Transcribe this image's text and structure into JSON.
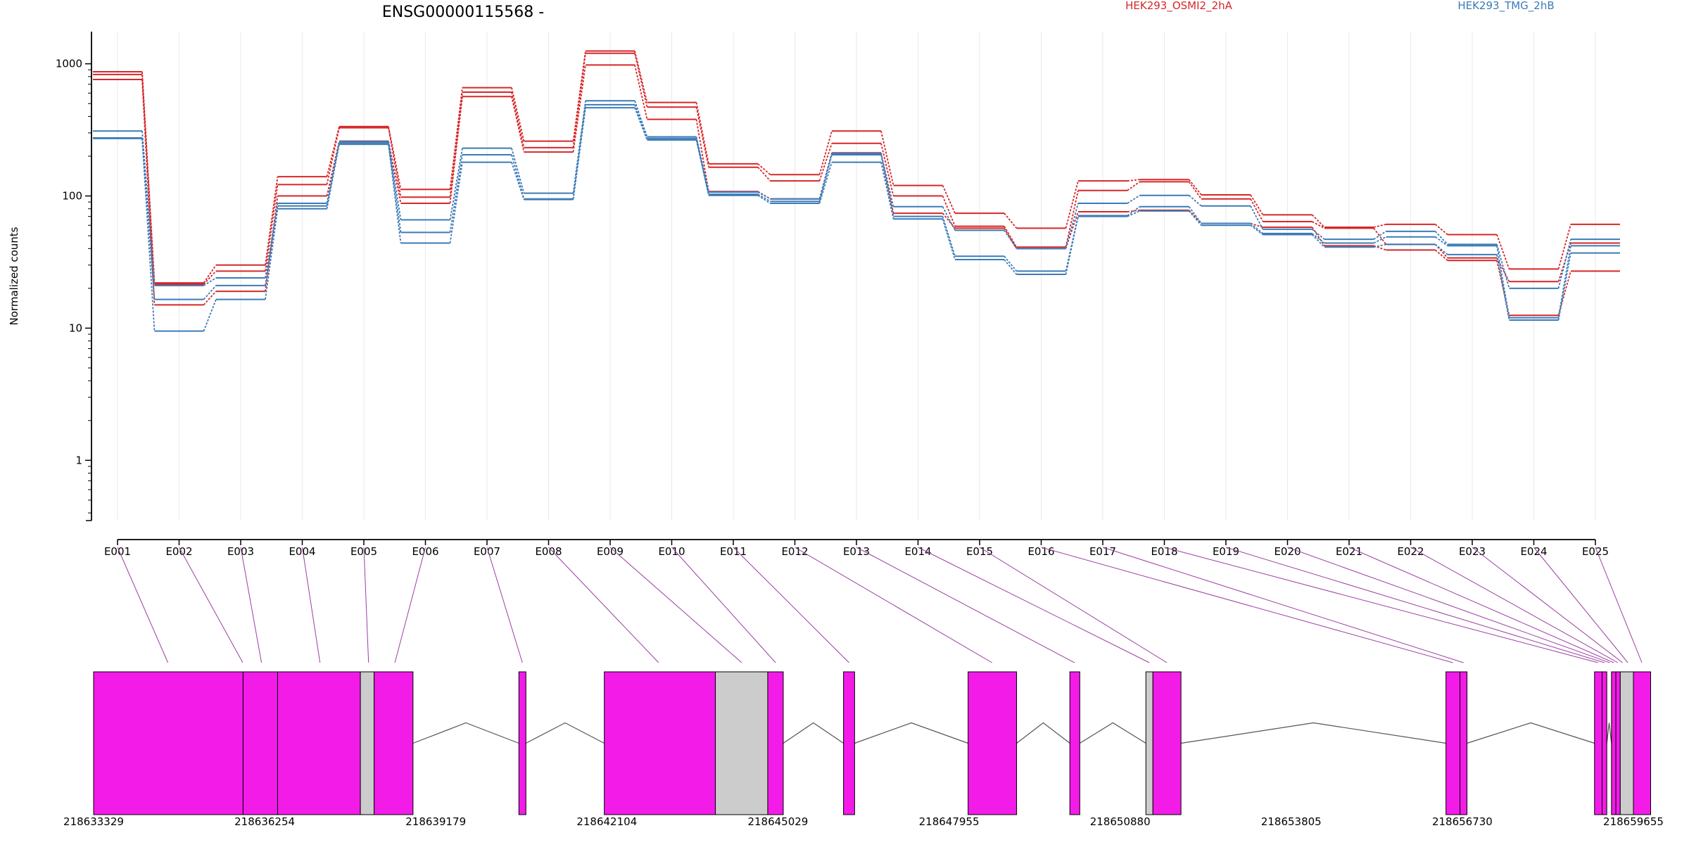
{
  "chart_data": [
    {
      "type": "line",
      "title": "ENSG00000115568 -",
      "xlabel": "",
      "ylabel": "Normalized counts",
      "y_scale": "log",
      "ylim": [
        0.35,
        1750
      ],
      "y_ticks": [
        1,
        10,
        100,
        1000
      ],
      "y_tick_labels": [
        "1",
        "10",
        "100",
        "1000"
      ],
      "categories": [
        "E001",
        "E002",
        "E003",
        "E004",
        "E005",
        "E006",
        "E007",
        "E008",
        "E009",
        "E010",
        "E011",
        "E012",
        "E013",
        "E014",
        "E015",
        "E016",
        "E017",
        "E018",
        "E019",
        "E020",
        "E021",
        "E022",
        "E023",
        "E024",
        "E025"
      ],
      "grid": "vertical",
      "legend_position": "top-right",
      "legend": [
        {
          "label": "HEK293_OSMI2_2hA",
          "color": "#d62728"
        },
        {
          "label": "HEK293_TMG_2hB",
          "color": "#3b7bb8"
        }
      ],
      "series": [
        {
          "group": "HEK293_OSMI2_2hA",
          "color": "#d62728",
          "values": [
            870,
            22,
            30,
            140,
            335,
            112,
            660,
            260,
            1250,
            510,
            175,
            145,
            310,
            120,
            74,
            57,
            130,
            133,
            102,
            72,
            58,
            61,
            51,
            28,
            61
          ]
        },
        {
          "group": "HEK293_OSMI2_2hA",
          "color": "#d62728",
          "values": [
            830,
            21.5,
            27,
            122,
            328,
            98,
            610,
            232,
            1200,
            470,
            165,
            130,
            250,
            100,
            59,
            41,
            110,
            128,
            95,
            64,
            57,
            43,
            34,
            22.5,
            44
          ]
        },
        {
          "group": "HEK293_OSMI2_2hA",
          "color": "#d62728",
          "values": [
            760,
            15,
            19,
            100,
            260,
            88,
            565,
            215,
            980,
            380,
            108,
            95,
            212,
            74,
            57,
            40,
            76,
            78,
            62,
            58,
            42,
            39,
            32.5,
            12.5,
            27
          ]
        },
        {
          "group": "HEK293_TMG_2hB",
          "color": "#3b7bb8",
          "values": [
            310,
            21,
            24,
            88,
            258,
            66,
            230,
            105,
            525,
            280,
            107,
            95,
            210,
            83,
            55,
            40,
            88,
            101,
            84,
            56,
            47,
            54,
            43,
            20,
            47
          ]
        },
        {
          "group": "HEK293_TMG_2hB",
          "color": "#3b7bb8",
          "values": [
            275,
            16.5,
            21,
            84,
            252,
            53,
            205,
            95,
            490,
            272,
            103,
            91,
            205,
            70,
            35,
            27,
            71,
            83,
            62,
            52,
            44,
            49,
            42,
            12,
            42
          ]
        },
        {
          "group": "HEK293_TMG_2hB",
          "color": "#3b7bb8",
          "values": [
            272,
            9.5,
            16.5,
            80,
            246,
            44,
            180,
            94,
            465,
            265,
            101,
            88,
            180,
            67,
            33,
            25.5,
            70,
            77,
            60,
            51,
            41,
            43,
            36,
            11.5,
            37
          ]
        }
      ]
    },
    {
      "type": "gene-model",
      "x_ticks": [
        218633329,
        218636254,
        218639179,
        218642104,
        218645029,
        218647955,
        218650880,
        218653805,
        218656730,
        218659655
      ],
      "x_tick_labels": [
        "218633329",
        "218636254",
        "218639179",
        "218642104",
        "218645029",
        "218647955",
        "218650880",
        "218653805",
        "218656730",
        "218659655"
      ],
      "segment_colors": {
        "counted": "#f21be8",
        "not_counted": "#cccccc"
      },
      "segments": [
        {
          "start": 218633329,
          "end": 218635885,
          "kind": "counted"
        },
        {
          "start": 218635885,
          "end": 218636475,
          "kind": "counted"
        },
        {
          "start": 218636475,
          "end": 218637890,
          "kind": "counted"
        },
        {
          "start": 218637890,
          "end": 218638125,
          "kind": "not_counted"
        },
        {
          "start": 218638125,
          "end": 218638790,
          "kind": "counted"
        },
        {
          "start": 218640600,
          "end": 218640720,
          "kind": "counted"
        },
        {
          "start": 218642060,
          "end": 218643960,
          "kind": "counted"
        },
        {
          "start": 218643960,
          "end": 218644855,
          "kind": "not_counted"
        },
        {
          "start": 218644855,
          "end": 218645120,
          "kind": "counted"
        },
        {
          "start": 218646150,
          "end": 218646340,
          "kind": "counted"
        },
        {
          "start": 218648280,
          "end": 218649110,
          "kind": "counted"
        },
        {
          "start": 218650020,
          "end": 218650190,
          "kind": "counted"
        },
        {
          "start": 218651320,
          "end": 218651440,
          "kind": "not_counted"
        },
        {
          "start": 218651440,
          "end": 218651920,
          "kind": "counted"
        },
        {
          "start": 218656450,
          "end": 218656690,
          "kind": "counted"
        },
        {
          "start": 218656690,
          "end": 218656810,
          "kind": "counted"
        },
        {
          "start": 218658990,
          "end": 218659120,
          "kind": "counted"
        },
        {
          "start": 218659120,
          "end": 218659200,
          "kind": "counted"
        },
        {
          "start": 218659280,
          "end": 218659355,
          "kind": "counted"
        },
        {
          "start": 218659355,
          "end": 218659430,
          "kind": "counted"
        },
        {
          "start": 218659430,
          "end": 218659655,
          "kind": "not_counted"
        },
        {
          "start": 218659655,
          "end": 218659950,
          "kind": "counted"
        }
      ],
      "introns": [
        {
          "start": 218638790,
          "end": 218640600
        },
        {
          "start": 218640720,
          "end": 218642060
        },
        {
          "start": 218645120,
          "end": 218646150
        },
        {
          "start": 218646340,
          "end": 218648280
        },
        {
          "start": 218649110,
          "end": 218650020
        },
        {
          "start": 218650190,
          "end": 218651320
        },
        {
          "start": 218651920,
          "end": 218656450
        },
        {
          "start": 218656810,
          "end": 218658990
        },
        {
          "start": 218659200,
          "end": 218659280
        }
      ],
      "feature_positions": [
        218634600,
        218635880,
        218636200,
        218637200,
        218638030,
        218638480,
        218640660,
        218642990,
        218644410,
        218644990,
        218646245,
        218648690,
        218650100,
        218651380,
        218651680,
        218656570,
        218656750,
        218659050,
        218659160,
        218659250,
        218659320,
        218659390,
        218659470,
        218659560,
        218659800
      ]
    }
  ]
}
